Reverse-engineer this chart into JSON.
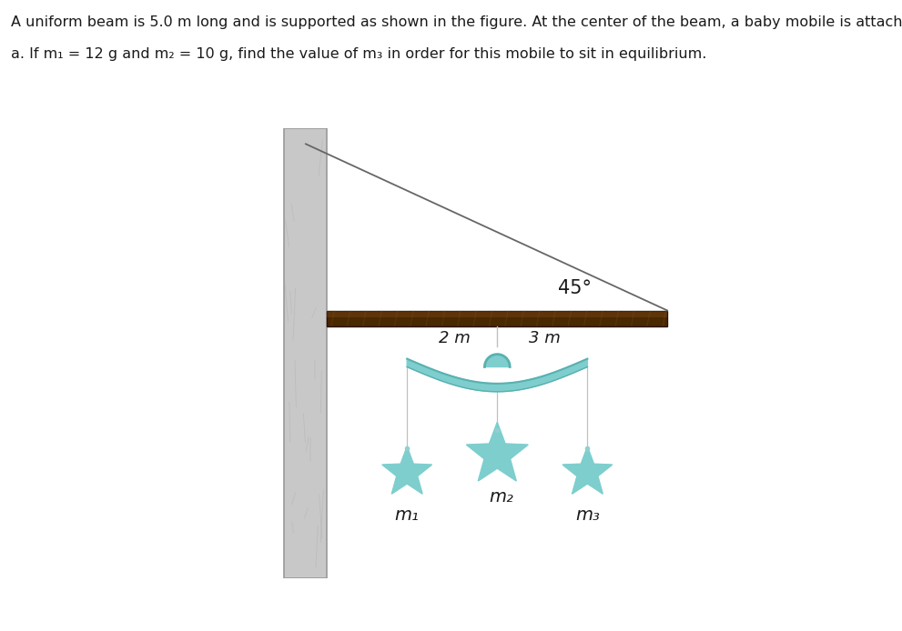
{
  "title_line1": "A uniform beam is 5.0 m long and is supported as shown in the figure. At the center of the beam, a baby mobile is attached.",
  "title_line2": "a. If m₁ = 12 g and m₂ = 10 g, find the value of m₃ in order for this mobile to sit in equilibrium.",
  "background_color": "#ffffff",
  "beam_color": "#4a2800",
  "beam_color_light": "#7a5030",
  "cable_color": "#666666",
  "wall_color": "#c8c8c8",
  "wall_border_color": "#aaaaaa",
  "angle_label": "45°",
  "label_2m": "2 m",
  "label_3m": "3 m",
  "label_m1": "m₁",
  "label_m2": "m₂",
  "label_m3": "m₃",
  "star_color": "#7ecece",
  "mobile_arc_color": "#7ecece",
  "mobile_arc_dark": "#5ab0b0",
  "string_color": "#c0c0c0",
  "text_color": "#1a1a1a",
  "font_size_title": 11.5,
  "font_size_labels": 13,
  "font_size_angle": 15,
  "font_size_mass": 14
}
